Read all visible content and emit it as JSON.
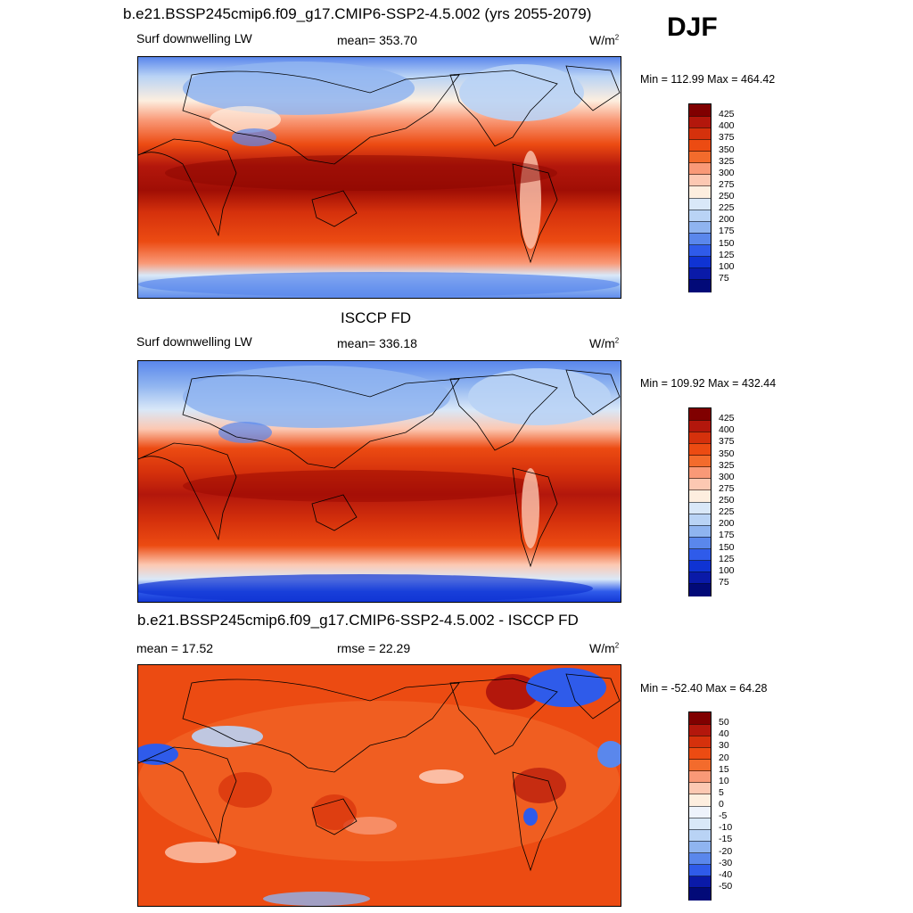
{
  "season": "DJF",
  "units_prefix": "W/m",
  "units_exp": "2",
  "panels": [
    {
      "title": "b.e21.BSSP245cmip6.f09_g17.CMIP6-SSP2-4.5.002 (yrs 2055-2079)",
      "left_label": "Surf downwelling LW",
      "center_label": "mean= 353.70",
      "minmax": "Min = 112.99 Max = 464.42",
      "colorbar": {
        "labels": [
          "425",
          "400",
          "375",
          "350",
          "325",
          "300",
          "275",
          "250",
          "225",
          "200",
          "175",
          "150",
          "125",
          "100",
          "75"
        ],
        "colors": [
          "#800000",
          "#b3170c",
          "#d5310c",
          "#ec4b12",
          "#f36b2c",
          "#f99977",
          "#fcc8b2",
          "#fdeedf",
          "#d9e8f8",
          "#b9d3f5",
          "#8fb4f0",
          "#5a87ec",
          "#2f5bea",
          "#0f33d3",
          "#0a1aa8",
          "#020a78"
        ]
      }
    },
    {
      "title": "ISCCP FD",
      "left_label": "Surf downwelling LW",
      "center_label": "mean= 336.18",
      "minmax": "Min = 109.92 Max = 432.44",
      "colorbar": {
        "labels": [
          "425",
          "400",
          "375",
          "350",
          "325",
          "300",
          "275",
          "250",
          "225",
          "200",
          "175",
          "150",
          "125",
          "100",
          "75"
        ],
        "colors": [
          "#800000",
          "#b3170c",
          "#d5310c",
          "#ec4b12",
          "#f36b2c",
          "#f99977",
          "#fcc8b2",
          "#fdeedf",
          "#d9e8f8",
          "#b9d3f5",
          "#8fb4f0",
          "#5a87ec",
          "#2f5bea",
          "#0f33d3",
          "#0a1aa8",
          "#020a78"
        ]
      }
    },
    {
      "title": "b.e21.BSSP245cmip6.f09_g17.CMIP6-SSP2-4.5.002 - ISCCP FD",
      "left_label": "mean =  17.52",
      "center_label": "rmse =  22.29",
      "minmax": "Min = -52.40 Max =  64.28",
      "colorbar": {
        "labels": [
          "50",
          "40",
          "30",
          "20",
          "15",
          "10",
          "5",
          "0",
          "-5",
          "-10",
          "-15",
          "-20",
          "-30",
          "-40",
          "-50"
        ],
        "colors": [
          "#800000",
          "#b3170c",
          "#d5310c",
          "#ec4b12",
          "#f36b2c",
          "#f99977",
          "#fcc8b2",
          "#fdeedf",
          "#eef3fb",
          "#d9e8f8",
          "#b9d3f5",
          "#8fb4f0",
          "#5a87ec",
          "#2f5bea",
          "#0a1aa8",
          "#020a78"
        ]
      }
    }
  ]
}
